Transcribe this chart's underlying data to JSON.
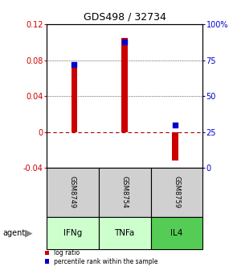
{
  "title": "GDS498 / 32734",
  "samples": [
    "GSM8749",
    "GSM8754",
    "GSM8759"
  ],
  "agents": [
    "IFNg",
    "TNFa",
    "IL4"
  ],
  "log_ratios": [
    0.075,
    0.105,
    -0.032
  ],
  "percentile_ranks": [
    0.72,
    0.88,
    0.3
  ],
  "ylim_left": [
    -0.04,
    0.12
  ],
  "ylim_right": [
    0.0,
    1.0
  ],
  "yticks_left": [
    -0.04,
    0.0,
    0.04,
    0.08,
    0.12
  ],
  "yticks_right": [
    0.0,
    0.25,
    0.5,
    0.75,
    1.0
  ],
  "ytick_labels_left": [
    "-0.04",
    "0",
    "0.04",
    "0.08",
    "0.12"
  ],
  "ytick_labels_right": [
    "0",
    "25",
    "50",
    "75",
    "100%"
  ],
  "bar_color": "#cc0000",
  "dot_color": "#0000cc",
  "zero_line_color": "#aa0000",
  "sample_bg_color": "#d0d0d0",
  "agent_bg_colors": [
    "#ccffcc",
    "#ccffcc",
    "#55cc55"
  ],
  "bar_width": 0.12
}
